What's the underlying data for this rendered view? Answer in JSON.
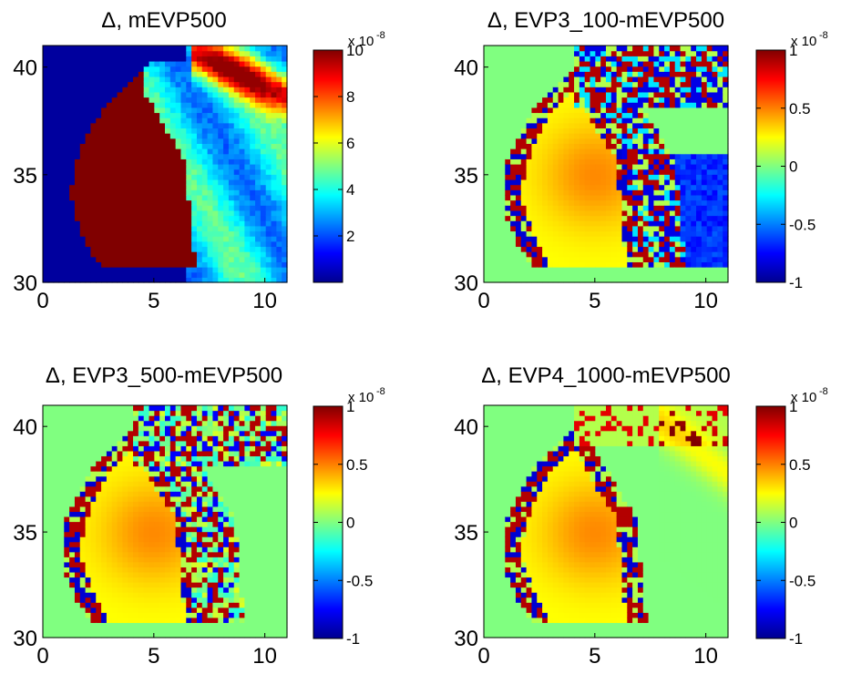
{
  "figure": {
    "type": "heatmap_panels"
  },
  "chart_data": [
    {
      "type": "heatmap",
      "title": "Δ, mEVP500",
      "x_ticks": [
        "0",
        "5",
        "10"
      ],
      "y_ticks": [
        "30",
        "35",
        "40"
      ],
      "xlim": [
        0,
        11
      ],
      "ylim": [
        30,
        41
      ],
      "colorbar": {
        "min": 0,
        "max": 10,
        "ticks": [
          "2",
          "4",
          "6",
          "8",
          "10"
        ],
        "tick_values": [
          2,
          4,
          6,
          8,
          10
        ],
        "multiplier": "x 10",
        "exponent": "-8"
      },
      "field": "mevp"
    },
    {
      "type": "heatmap",
      "title": "Δ, EVP3_100-mEVP500",
      "x_ticks": [
        "0",
        "5",
        "10"
      ],
      "y_ticks": [
        "30",
        "35",
        "40"
      ],
      "xlim": [
        0,
        11
      ],
      "ylim": [
        30,
        41
      ],
      "colorbar": {
        "min": -1,
        "max": 1,
        "ticks": [
          "-1",
          "-0.5",
          "0",
          "0.5",
          "1"
        ],
        "tick_values": [
          -1,
          -0.5,
          0,
          0.5,
          1
        ],
        "multiplier": "x 10",
        "exponent": "-8"
      },
      "field": "diff100"
    },
    {
      "type": "heatmap",
      "title": "Δ, EVP3_500-mEVP500",
      "x_ticks": [
        "0",
        "5",
        "10"
      ],
      "y_ticks": [
        "30",
        "35",
        "40"
      ],
      "xlim": [
        0,
        11
      ],
      "ylim": [
        30,
        41
      ],
      "colorbar": {
        "min": -1,
        "max": 1,
        "ticks": [
          "-1",
          "-0.5",
          "0",
          "0.5",
          "1"
        ],
        "tick_values": [
          -1,
          -0.5,
          0,
          0.5,
          1
        ],
        "multiplier": "x 10",
        "exponent": "-8"
      },
      "field": "diff500"
    },
    {
      "type": "heatmap",
      "title": "Δ, EVP4_1000-mEVP500",
      "x_ticks": [
        "0",
        "5",
        "10"
      ],
      "y_ticks": [
        "30",
        "35",
        "40"
      ],
      "xlim": [
        0,
        11
      ],
      "ylim": [
        30,
        41
      ],
      "colorbar": {
        "min": -1,
        "max": 1,
        "ticks": [
          "-1",
          "-0.5",
          "0",
          "0.5",
          "1"
        ],
        "tick_values": [
          -1,
          -0.5,
          0,
          0.5,
          1
        ],
        "multiplier": "x 10",
        "exponent": "-8"
      },
      "field": "diff1000"
    }
  ]
}
